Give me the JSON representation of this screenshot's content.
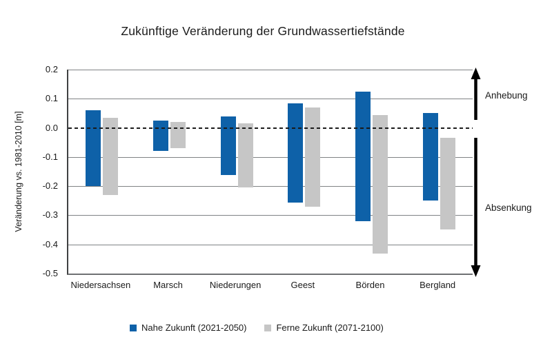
{
  "title": "Zukünftige Veränderung der Grundwassertiefstände",
  "y_axis": {
    "label": "Veränderung vs. 1981-2010 [m]"
  },
  "annotations": {
    "up": "Anhebung",
    "down": "Absenkung"
  },
  "legend": [
    {
      "label": "Nahe Zukunft (2021-2050)",
      "color": "#0e61a8"
    },
    {
      "label": "Ferne Zukunft (2071-2100)",
      "color": "#c6c6c6"
    }
  ],
  "colors": {
    "near_future_blue": "#0e61a8",
    "far_future_gray": "#c6c6c6",
    "gridline": "#7f8284",
    "zero_line": "#1a1a1a",
    "arrow": "#000000"
  },
  "chart_data": {
    "type": "bar",
    "subtype": "floating-range-bars",
    "title": "Zukünftige Veränderung der Grundwassertiefstände",
    "ylabel": "Veränderung vs. 1981-2010 [m]",
    "xlabel": "",
    "categories": [
      "Niedersachsen",
      "Marsch",
      "Niederungen",
      "Geest",
      "Börden",
      "Bergland"
    ],
    "series": [
      {
        "name": "Nahe Zukunft (2021-2050)",
        "color": "#0e61a8",
        "ranges": [
          [
            -0.2,
            0.06
          ],
          [
            -0.08,
            0.025
          ],
          [
            -0.16,
            0.04
          ],
          [
            -0.255,
            0.085
          ],
          [
            -0.32,
            0.125
          ],
          [
            -0.25,
            0.05
          ]
        ]
      },
      {
        "name": "Ferne Zukunft (2071-2100)",
        "color": "#c6c6c6",
        "ranges": [
          [
            -0.23,
            0.035
          ],
          [
            -0.07,
            0.02
          ],
          [
            -0.205,
            0.015
          ],
          [
            -0.27,
            0.07
          ],
          [
            -0.43,
            0.045
          ],
          [
            -0.35,
            -0.035
          ]
        ]
      }
    ],
    "ylim": [
      -0.5,
      0.2
    ],
    "ytick_labels": [
      "0.2",
      "0.1",
      "0.0",
      "-0.1",
      "-0.2",
      "-0.3",
      "-0.4",
      "-0.5"
    ],
    "zero_line_style": "dashed",
    "grid": true,
    "legend_position": "bottom",
    "annotations": [
      {
        "text": "Anhebung",
        "meaning": "range above zero line",
        "arrow": "up"
      },
      {
        "text": "Absenkung",
        "meaning": "range below zero line",
        "arrow": "down"
      }
    ]
  }
}
